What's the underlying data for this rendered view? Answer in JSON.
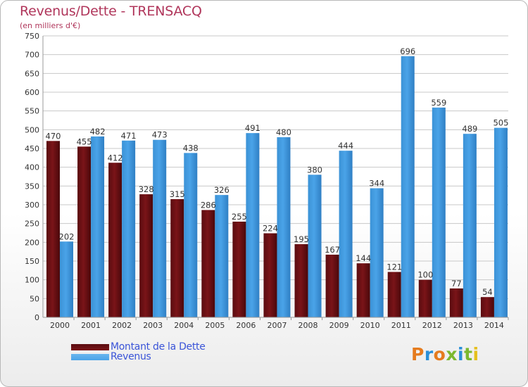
{
  "header": {
    "title": "Revenus/Dette - TRENSACQ",
    "subtitle": "(en milliers d'€)"
  },
  "colors": {
    "dette": "#7a1418",
    "revenus": "#4aa3e8",
    "grid": "#c8c8c8",
    "axis_text": "#333333"
  },
  "chart_data": {
    "type": "bar",
    "title": "Revenus/Dette - TRENSACQ",
    "ylabel": "(en milliers d'€)",
    "xlabel": "",
    "ylim": [
      0,
      750
    ],
    "yticks": [
      0,
      50,
      100,
      150,
      200,
      250,
      300,
      350,
      400,
      450,
      500,
      550,
      600,
      650,
      700,
      750
    ],
    "grid": true,
    "legend_position": "bottom-left",
    "categories": [
      "2000",
      "2001",
      "2002",
      "2003",
      "2004",
      "2005",
      "2006",
      "2007",
      "2008",
      "2009",
      "2010",
      "2011",
      "2012",
      "2013",
      "2014"
    ],
    "series": [
      {
        "name": "Montant de la Dette",
        "values": [
          470,
          455,
          412,
          328,
          315,
          286,
          255,
          224,
          195,
          167,
          144,
          121,
          100,
          77,
          54
        ]
      },
      {
        "name": "Revenus",
        "values": [
          202,
          482,
          471,
          473,
          438,
          326,
          491,
          480,
          380,
          444,
          344,
          696,
          559,
          489,
          505
        ]
      }
    ]
  },
  "legend": {
    "items": [
      {
        "label": "Montant de la Dette"
      },
      {
        "label": "Revenus"
      }
    ]
  },
  "logo": {
    "letters": [
      "P",
      "r",
      "o",
      "x",
      "i",
      "t",
      "i"
    ],
    "colors": [
      "#e57b1e",
      "#2a8fd8",
      "#e57b1e",
      "#7cb82f",
      "#2a8fd8",
      "#7cb82f",
      "#e5c01e"
    ]
  }
}
